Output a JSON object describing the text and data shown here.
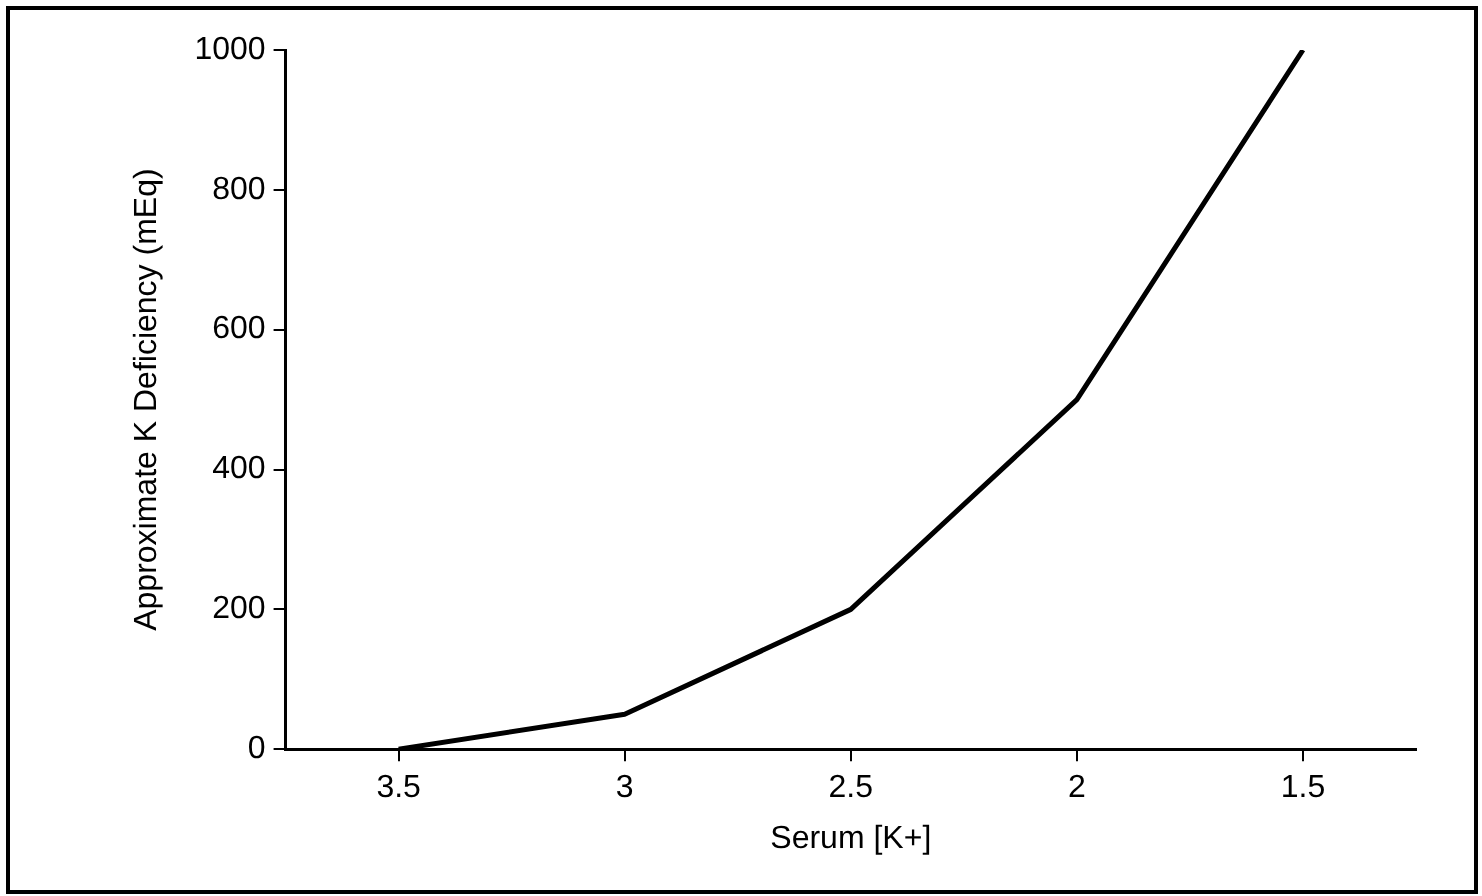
{
  "chart_data": {
    "type": "line",
    "xlabel": "Serum [K+]",
    "ylabel": "Approximate K Deficiency (mEq)",
    "categories": [
      "3.5",
      "3",
      "2.5",
      "2",
      "1.5"
    ],
    "series": [
      {
        "color": "#000000",
        "values": [
          0,
          50,
          200,
          500,
          1000
        ]
      }
    ],
    "ylim": [
      0,
      1000
    ],
    "yticks": [
      0,
      200,
      400,
      600,
      800,
      1000
    ],
    "grid": false,
    "legend": false,
    "marker": "none",
    "line_style": "solid"
  }
}
